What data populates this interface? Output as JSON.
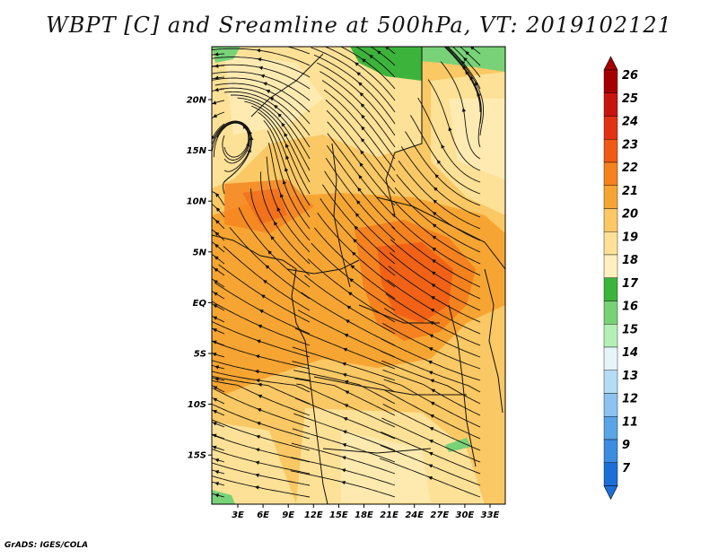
{
  "title": "WBPT [C] and Sreamline at 500hPa, VT: 2019102121",
  "credit": "GrADS: IGES/COLA",
  "map": {
    "lon_range": [
      0,
      36
    ],
    "lat_range": [
      -20,
      25
    ],
    "lon_ticks": [
      "3E",
      "6E",
      "9E",
      "12E",
      "15E",
      "18E",
      "21E",
      "24E",
      "27E",
      "30E",
      "33E"
    ],
    "lat_ticks": [
      "20N",
      "15N",
      "10N",
      "5N",
      "EQ",
      "5S",
      "10S",
      "15S"
    ]
  },
  "colorbar": {
    "levels": [
      "26",
      "25",
      "24",
      "23",
      "22",
      "21",
      "20",
      "19",
      "18",
      "17",
      "16",
      "15",
      "14",
      "13",
      "12",
      "11",
      "9",
      "7"
    ],
    "colors": [
      "#a50000",
      "#c8140f",
      "#e13214",
      "#f05a14",
      "#f5821e",
      "#f7a532",
      "#fac864",
      "#fde196",
      "#fff0be",
      "#3cb43c",
      "#78d278",
      "#b4f0b4",
      "#e6f5fa",
      "#b4dcf5",
      "#8cc3f0",
      "#5aa5e6",
      "#3c8ce1",
      "#1e6ed7"
    ],
    "top_arrow_color": "#a50000",
    "bottom_arrow_color": "#1e6ed7"
  }
}
